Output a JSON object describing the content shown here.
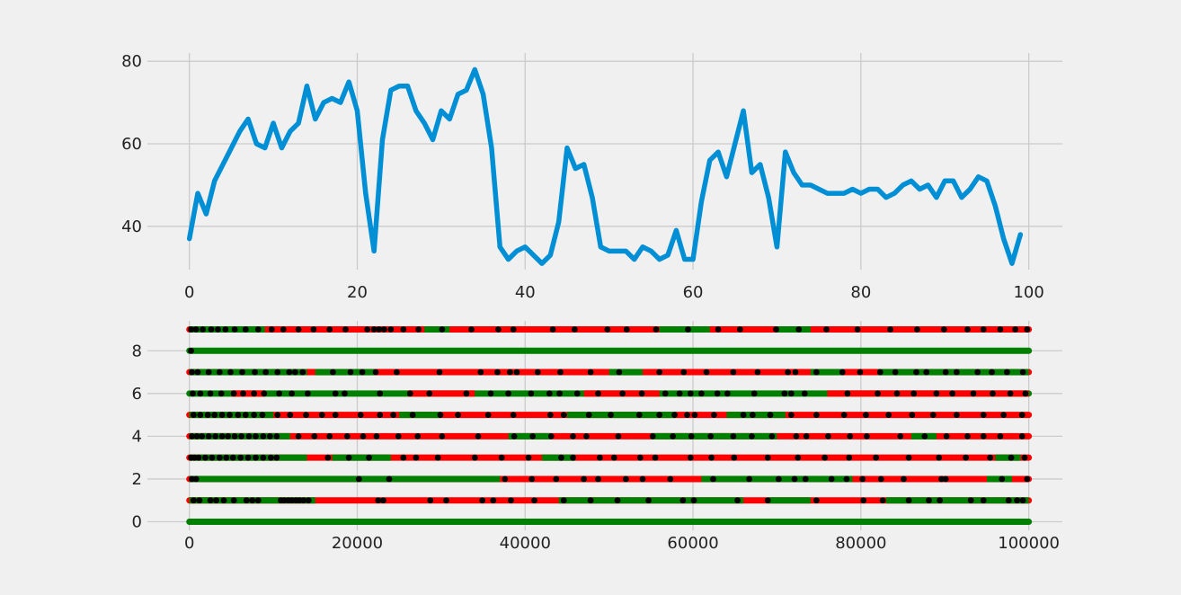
{
  "chart_data": [
    {
      "type": "line",
      "title": "",
      "xlabel": "",
      "ylabel": "",
      "xlim": [
        -5,
        104
      ],
      "ylim": [
        29.5,
        82
      ],
      "xticks": [
        0,
        20,
        40,
        60,
        80,
        100
      ],
      "yticks": [
        40,
        60,
        80
      ],
      "grid": true,
      "series": [
        {
          "color": "#008fd5",
          "x": [
            0,
            1,
            2,
            3,
            4,
            5,
            6,
            7,
            8,
            9,
            10,
            11,
            12,
            13,
            14,
            15,
            16,
            17,
            18,
            19,
            20,
            21,
            22,
            23,
            24,
            25,
            26,
            27,
            28,
            29,
            30,
            31,
            32,
            33,
            34,
            35,
            36,
            37,
            38,
            39,
            40,
            41,
            42,
            43,
            44,
            45,
            46,
            47,
            48,
            49,
            50,
            51,
            52,
            53,
            54,
            55,
            56,
            57,
            58,
            59,
            60,
            61,
            62,
            63,
            64,
            65,
            66,
            67,
            68,
            69,
            70,
            71,
            72,
            73,
            74,
            75,
            76,
            77,
            78,
            79,
            80,
            81,
            82,
            83,
            84,
            85,
            86,
            87,
            88,
            89,
            90,
            91,
            92,
            93,
            94,
            95,
            96,
            97,
            98,
            99
          ],
          "values": [
            37,
            48,
            43,
            51,
            55,
            59,
            63,
            66,
            60,
            59,
            65,
            59,
            63,
            65,
            74,
            66,
            70,
            71,
            70,
            75,
            68,
            48,
            34,
            61,
            73,
            74,
            74,
            68,
            65,
            61,
            68,
            66,
            72,
            73,
            78,
            72,
            59,
            35,
            32,
            34,
            35,
            33,
            31,
            33,
            41,
            59,
            54,
            55,
            47,
            35,
            34,
            34,
            34,
            32,
            35,
            34,
            32,
            33,
            39,
            32,
            32,
            46,
            56,
            58,
            52,
            60,
            68,
            53,
            55,
            47,
            35,
            58,
            53,
            50,
            50,
            49,
            48,
            48,
            48,
            49,
            48,
            49,
            49,
            47,
            48,
            50,
            51,
            49,
            50,
            47,
            51,
            51,
            47,
            49,
            52,
            51,
            45,
            37,
            31,
            38
          ]
        }
      ]
    },
    {
      "type": "scatter",
      "title": "",
      "xlabel": "",
      "ylabel": "",
      "xlim": [
        -5000,
        104000
      ],
      "ylim": [
        -0.4,
        9.4
      ],
      "xticks": [
        0,
        20000,
        40000,
        60000,
        80000,
        100000
      ],
      "yticks": [
        0,
        2,
        4,
        6,
        8
      ],
      "grid": true,
      "rows": [
        {
          "y": 0,
          "base": "#008000",
          "segments": [],
          "black": []
        },
        {
          "y": 1,
          "base": "#ff0000",
          "segments": [
            [
              0,
              15000,
              "#008000"
            ],
            [
              44000,
              66000,
              "#008000"
            ],
            [
              69000,
              74000,
              "#008000"
            ],
            [
              83000,
              100000,
              "#008000"
            ]
          ],
          "black": [
            500,
            1200,
            2500,
            3200,
            4100,
            5300,
            6800,
            7500,
            8200,
            10900,
            11300,
            11800,
            12200,
            12700,
            13100,
            13600,
            14200,
            22500,
            23100,
            28700,
            30600,
            34900,
            36200,
            38300,
            41100,
            44600,
            47800,
            51000,
            54700,
            58800,
            60100,
            65300,
            68900,
            74700,
            80300,
            82600,
            85700,
            88100,
            89400,
            93100,
            94600,
            97600,
            98600,
            99300
          ]
        },
        {
          "y": 2,
          "base": "#ff0000",
          "segments": [
            [
              0,
              37000,
              "#008000"
            ],
            [
              61000,
              79000,
              "#008000"
            ],
            [
              95000,
              98000,
              "#008000"
            ]
          ],
          "black": [
            300,
            800,
            20200,
            23800,
            37600,
            40800,
            43700,
            47000,
            48700,
            52000,
            54000,
            57300,
            62400,
            66700,
            70200,
            72100,
            73400,
            76500,
            78300,
            80200,
            82400,
            85100,
            89600,
            90100,
            96800,
            99800
          ]
        },
        {
          "y": 3,
          "base": "#ff0000",
          "segments": [
            [
              0,
              14000,
              "#008000"
            ],
            [
              17000,
              24000,
              "#008000"
            ],
            [
              42000,
              46000,
              "#008000"
            ],
            [
              96000,
              99000,
              "#008000"
            ]
          ],
          "black": [
            200,
            600,
            1100,
            1900,
            2700,
            3600,
            4400,
            5200,
            6100,
            7000,
            7900,
            8800,
            9700,
            10400,
            16500,
            19000,
            21400,
            25500,
            27000,
            29600,
            34000,
            37200,
            40400,
            44300,
            45700,
            48900,
            50600,
            53700,
            55500,
            59700,
            62200,
            64900,
            68900,
            72500,
            75700,
            78600,
            81800,
            85700,
            89300,
            92500,
            95400,
            97900,
            99500
          ]
        },
        {
          "y": 4,
          "base": "#ff0000",
          "segments": [
            [
              0,
              12000,
              "#008000"
            ],
            [
              38000,
              43000,
              "#008000"
            ],
            [
              55000,
              70000,
              "#008000"
            ],
            [
              86000,
              89000,
              "#008000"
            ]
          ],
          "black": [
            300,
            900,
            1500,
            2300,
            3100,
            3900,
            4600,
            5400,
            6200,
            7100,
            7900,
            8800,
            9600,
            10400,
            13000,
            14900,
            16700,
            18800,
            20700,
            22300,
            24900,
            27200,
            30100,
            34400,
            38700,
            40900,
            43100,
            45700,
            47300,
            51100,
            55200,
            57600,
            59800,
            62100,
            64800,
            67000,
            69400,
            72300,
            73500,
            76100,
            78700,
            80700,
            84700,
            87600,
            90200,
            92700,
            94600,
            96600,
            99200
          ]
        },
        {
          "y": 5,
          "base": "#ff0000",
          "segments": [
            [
              0,
              10000,
              "#008000"
            ],
            [
              25000,
              30000,
              "#008000"
            ],
            [
              45000,
              58000,
              "#008000"
            ],
            [
              64000,
              71000,
              "#008000"
            ]
          ],
          "black": [
            500,
            1300,
            2200,
            3000,
            3900,
            4800,
            5800,
            6700,
            7700,
            8700,
            10500,
            12000,
            13900,
            15800,
            17400,
            20400,
            22700,
            24300,
            26600,
            29900,
            32000,
            35600,
            38600,
            43000,
            44600,
            47600,
            50200,
            53600,
            56000,
            57800,
            59300,
            60200,
            62500,
            66000,
            67100,
            69200,
            71700,
            74700,
            78000,
            80600,
            83300,
            86100,
            88600,
            91400,
            94600,
            97000,
            99200
          ]
        },
        {
          "y": 6,
          "base": "#008000",
          "segments": [
            [
              5000,
              9000,
              "#ff0000"
            ],
            [
              26000,
              34000,
              "#ff0000"
            ],
            [
              47000,
              56000,
              "#ff0000"
            ],
            [
              76000,
              100000,
              "#ff0000"
            ]
          ],
          "black": [
            400,
            1300,
            2500,
            3800,
            5300,
            6400,
            7700,
            8900,
            10700,
            12200,
            14100,
            17400,
            18500,
            22700,
            26300,
            28600,
            33000,
            35900,
            38000,
            40700,
            42900,
            44100,
            46200,
            48700,
            51600,
            53900,
            56700,
            58400,
            59700,
            61000,
            62900,
            64100,
            67300,
            70900,
            71700,
            73300,
            78400,
            82000,
            84300,
            86300,
            89000,
            90900,
            93400,
            95700,
            97800,
            99600
          ]
        },
        {
          "y": 7,
          "base": "#ff0000",
          "segments": [
            [
              0,
              14000,
              "#008000"
            ],
            [
              15000,
              22000,
              "#008000"
            ],
            [
              50000,
              54000,
              "#008000"
            ],
            [
              74000,
              78000,
              "#008000"
            ],
            [
              82000,
              100000,
              "#008000"
            ]
          ],
          "black": [
            300,
            1000,
            2300,
            3600,
            4900,
            6300,
            7800,
            9100,
            10500,
            11900,
            12600,
            13500,
            17100,
            19200,
            20600,
            22200,
            24700,
            29800,
            34700,
            36700,
            38200,
            39000,
            41500,
            44200,
            47800,
            51200,
            56000,
            58900,
            61600,
            64800,
            67700,
            71300,
            72200,
            74700,
            77800,
            79900,
            82300,
            84100,
            86600,
            87800,
            90100,
            91400,
            93900,
            95600,
            97400,
            99300
          ]
        },
        {
          "y": 8,
          "base": "#008000",
          "segments": [],
          "black": [
            200
          ]
        },
        {
          "y": 9,
          "base": "#ff0000",
          "segments": [
            [
              0,
              9000,
              "#008000"
            ],
            [
              28000,
              31000,
              "#008000"
            ],
            [
              56000,
              62000,
              "#008000"
            ],
            [
              70000,
              74000,
              "#008000"
            ]
          ],
          "black": [
            200,
            800,
            1600,
            2600,
            3400,
            4300,
            5400,
            6700,
            8200,
            9800,
            11200,
            13000,
            14800,
            16700,
            18600,
            21200,
            22000,
            22600,
            23200,
            24000,
            25500,
            27300,
            30100,
            33600,
            36800,
            38600,
            43300,
            45900,
            49800,
            52100,
            55600,
            59400,
            63000,
            65600,
            69900,
            72600,
            75900,
            79600,
            83500,
            86700,
            89900,
            92700,
            94600,
            96600,
            98400,
            99800
          ]
        }
      ]
    }
  ]
}
